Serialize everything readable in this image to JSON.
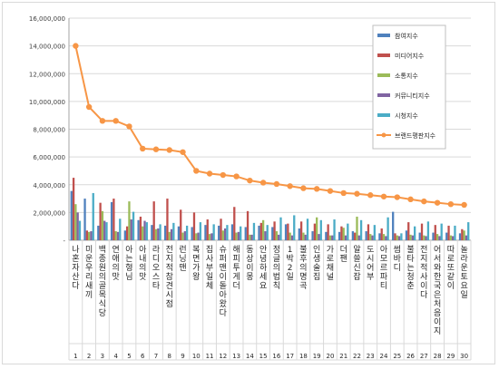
{
  "chart_data": {
    "type": "bar",
    "ylim": [
      0,
      16000000
    ],
    "yticks": [
      0,
      2000000,
      4000000,
      6000000,
      8000000,
      10000000,
      12000000,
      14000000,
      16000000
    ],
    "ytick_labels": [
      "-",
      "2,000,000",
      "4,000,000",
      "6,000,000",
      "8,000,000",
      "10,000,000",
      "12,000,000",
      "14,000,000",
      "16,000,000"
    ],
    "grid": true,
    "legend_position": "top-right",
    "ranks": [
      "1",
      "2",
      "3",
      "4",
      "5",
      "6",
      "7",
      "8",
      "9",
      "10",
      "11",
      "12",
      "13",
      "14",
      "15",
      "16",
      "17",
      "18",
      "19",
      "20",
      "21",
      "22",
      "23",
      "24",
      "25",
      "26",
      "27",
      "28",
      "29",
      "30"
    ],
    "categories": [
      "나혼자산다",
      "미운우리새끼",
      "백종원의골목식당",
      "연애의맛",
      "아는형님",
      "아내의맛",
      "라디오스타",
      "전지적참견시점",
      "런닝맨",
      "복면가왕",
      "집사부일체",
      "슈퍼맨이돌아왔다",
      "해피투게더",
      "동상이몽",
      "안녕하세요",
      "정글의법칙",
      "1박2일",
      "불후의명곡",
      "인생술집",
      "가로채널",
      "더팬",
      "알쓸신잡",
      "도시어부",
      "아모르파티",
      "썸바디",
      "불타는청춘",
      "전지적사이다",
      "어서와한국은처음이지",
      "따로또같이",
      "놀라운토요일"
    ],
    "series": [
      {
        "name": "참여지수",
        "color": "#4f81bd",
        "type": "bar",
        "values": [
          3550000,
          3000000,
          1050000,
          2750000,
          700000,
          1450000,
          1100000,
          1050000,
          1000000,
          950000,
          1100000,
          1050000,
          1150000,
          950000,
          1050000,
          950000,
          1150000,
          850000,
          650000,
          600000,
          600000,
          650000,
          650000,
          500000,
          2050000,
          700000,
          550000,
          550000,
          550000,
          500000
        ]
      },
      {
        "name": "미디어지수",
        "color": "#c0504d",
        "type": "bar",
        "values": [
          4500000,
          700000,
          2700000,
          3000000,
          1000000,
          1700000,
          2800000,
          3000000,
          2200000,
          2000000,
          1500000,
          1550000,
          2400000,
          2100000,
          1250000,
          1350000,
          1200000,
          1350000,
          1200000,
          1150000,
          1000000,
          550000,
          1150000,
          850000,
          500000,
          1300000,
          1200000,
          1100000,
          1050000,
          800000
        ]
      },
      {
        "name": "소통지수",
        "color": "#9bbb59",
        "type": "bar",
        "values": [
          2600000,
          600000,
          2100000,
          650000,
          2800000,
          1000000,
          800000,
          600000,
          550000,
          500000,
          450000,
          700000,
          550000,
          400000,
          1450000,
          650000,
          550000,
          550000,
          1650000,
          350000,
          900000,
          1700000,
          450000,
          450000,
          350000,
          400000,
          350000,
          450000,
          350000,
          700000
        ]
      },
      {
        "name": "커뮤니티지수",
        "color": "#8064a2",
        "type": "bar",
        "values": [
          2000000,
          650000,
          1400000,
          600000,
          1500000,
          1400000,
          850000,
          800000,
          650000,
          550000,
          500000,
          850000,
          600000,
          400000,
          650000,
          400000,
          350000,
          400000,
          450000,
          350000,
          350000,
          350000,
          350000,
          300000,
          300000,
          350000,
          300000,
          300000,
          300000,
          350000
        ]
      },
      {
        "name": "시청지수",
        "color": "#4bacc6",
        "type": "bar",
        "values": [
          1400000,
          3400000,
          1300000,
          1550000,
          2050000,
          1300000,
          1150000,
          1250000,
          1050000,
          1300000,
          1150000,
          1100000,
          1000000,
          1250000,
          1100000,
          1650000,
          1800000,
          1550000,
          1450000,
          1500000,
          1200000,
          1450000,
          1100000,
          1650000,
          500000,
          1000000,
          1350000,
          1200000,
          1050000,
          1300000
        ]
      },
      {
        "name": "브랜드평판지수",
        "color": "#f79646",
        "type": "line",
        "values": [
          14000000,
          9600000,
          8600000,
          8600000,
          8200000,
          6600000,
          6550000,
          6500000,
          6350000,
          5000000,
          4800000,
          4700000,
          4600000,
          4300000,
          4150000,
          4050000,
          3900000,
          3750000,
          3700000,
          3550000,
          3400000,
          3350000,
          3250000,
          3150000,
          3100000,
          2950000,
          2800000,
          2700000,
          2600000,
          2550000
        ]
      }
    ]
  }
}
